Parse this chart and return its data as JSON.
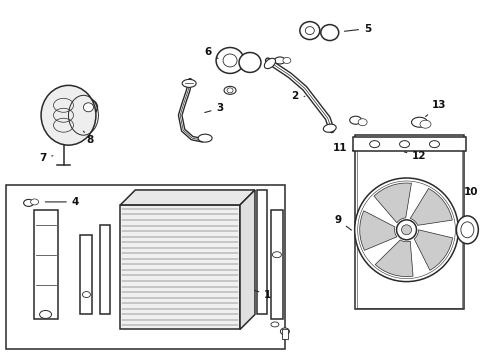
{
  "bg": "#ffffff",
  "lc": "#2a2a2a",
  "gray": "#888888",
  "light": "#cccccc",
  "figsize": [
    4.9,
    3.6
  ],
  "dpi": 100
}
